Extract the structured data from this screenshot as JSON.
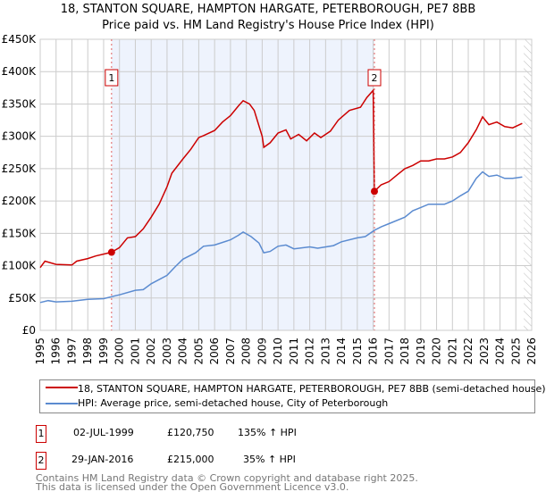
{
  "chart_data": {
    "type": "line",
    "title": "18, STANTON SQUARE, HAMPTON HARGATE, PETERBOROUGH, PE7 8BB",
    "subtitle": "Price paid vs. HM Land Registry's House Price Index (HPI)",
    "xlim": [
      1995,
      2026
    ],
    "ylim": [
      0,
      450000
    ],
    "x_ticks": [
      "1995",
      "1996",
      "1997",
      "1998",
      "1999",
      "2000",
      "2001",
      "2002",
      "2003",
      "2004",
      "2005",
      "2006",
      "2007",
      "2008",
      "2009",
      "2010",
      "2011",
      "2012",
      "2013",
      "2014",
      "2015",
      "2016",
      "2017",
      "2018",
      "2019",
      "2020",
      "2021",
      "2022",
      "2023",
      "2024",
      "2025",
      "2026"
    ],
    "y_ticks": [
      {
        "v": 0,
        "label": "£0"
      },
      {
        "v": 50000,
        "label": "£50K"
      },
      {
        "v": 100000,
        "label": "£100K"
      },
      {
        "v": 150000,
        "label": "£150K"
      },
      {
        "v": 200000,
        "label": "£200K"
      },
      {
        "v": 250000,
        "label": "£250K"
      },
      {
        "v": 300000,
        "label": "£300K"
      },
      {
        "v": 350000,
        "label": "£350K"
      },
      {
        "v": 400000,
        "label": "£400K"
      },
      {
        "v": 450000,
        "label": "£450K"
      }
    ],
    "grid": true,
    "shaded_range": [
      1999.5,
      2016.08
    ],
    "hatched_from": 2025.5,
    "series": [
      {
        "name": "18, STANTON SQUARE, HAMPTON HARGATE, PETERBOROUGH, PE7 8BB (semi-detached house)",
        "color": "#cc0000",
        "x": [
          1995,
          1995.3,
          1996,
          1997,
          1997.3,
          1998,
          1998.5,
          1999.5,
          2000,
          2000.5,
          2001,
          2001.5,
          2002,
          2002.5,
          2003,
          2003.3,
          2004,
          2004.5,
          2005,
          2005.3,
          2006,
          2006.5,
          2007,
          2007.5,
          2007.8,
          2008.2,
          2008.5,
          2009,
          2009.1,
          2009.5,
          2010,
          2010.5,
          2010.8,
          2011.3,
          2011.8,
          2012.3,
          2012.7,
          2013.3,
          2013.8,
          2014.5,
          2015.2,
          2015.6,
          2016.0,
          2016.08,
          2016.5,
          2017,
          2017.5,
          2018,
          2018.5,
          2019,
          2019.5,
          2020,
          2020.5,
          2021,
          2021.5,
          2022,
          2022.5,
          2022.9,
          2023.3,
          2023.8,
          2024.3,
          2024.8,
          2025.4
        ],
        "y": [
          97000,
          107000,
          102000,
          101000,
          107000,
          111000,
          115000,
          120750,
          128000,
          143000,
          145000,
          157000,
          175000,
          195000,
          222000,
          243000,
          265000,
          280000,
          298000,
          301000,
          309000,
          322000,
          332000,
          347000,
          355000,
          350000,
          340000,
          300000,
          283000,
          290000,
          305000,
          310000,
          296000,
          303000,
          293000,
          305000,
          298000,
          308000,
          325000,
          340000,
          345000,
          360000,
          371000,
          215000,
          225000,
          230000,
          240000,
          250000,
          255000,
          262000,
          262000,
          265000,
          265000,
          268000,
          275000,
          290000,
          310000,
          330000,
          318000,
          322000,
          315000,
          313000,
          320000
        ]
      },
      {
        "name": "HPI: Average price, semi-detached house, City of Peterborough",
        "color": "#5b8bd0",
        "x": [
          1995,
          1995.5,
          1996,
          1997,
          1998,
          1999,
          1999.5,
          2000,
          2001,
          2001.5,
          2002,
          2003,
          2003.5,
          2004,
          2004.8,
          2005.3,
          2006,
          2007,
          2007.5,
          2007.8,
          2008.3,
          2008.8,
          2009.1,
          2009.5,
          2010,
          2010.5,
          2011,
          2012,
          2012.5,
          2013.5,
          2014,
          2015,
          2015.5,
          2016.1,
          2016.5,
          2017,
          2018,
          2018.5,
          2019,
          2019.5,
          2020,
          2020.5,
          2021,
          2021.5,
          2022,
          2022.5,
          2022.9,
          2023.3,
          2023.8,
          2024.3,
          2024.8,
          2025.4
        ],
        "y": [
          43000,
          46000,
          44000,
          45000,
          48000,
          49000,
          52000,
          55000,
          62000,
          63000,
          72000,
          85000,
          98000,
          110000,
          120000,
          130000,
          132000,
          140000,
          147000,
          152000,
          145000,
          135000,
          120000,
          122000,
          130000,
          132000,
          126000,
          129000,
          127000,
          131000,
          137000,
          143000,
          145000,
          155000,
          160000,
          165000,
          175000,
          185000,
          190000,
          195000,
          195000,
          195000,
          200000,
          208000,
          215000,
          235000,
          245000,
          238000,
          240000,
          235000,
          235000,
          237000
        ]
      }
    ],
    "sales": [
      {
        "id": "1",
        "x": 1999.5,
        "price": 120750,
        "date": "02-JUL-1999",
        "price_label": "£120,750",
        "hpi": "135% ↑ HPI"
      },
      {
        "id": "2",
        "x": 2016.08,
        "price": 215000,
        "date": "29-JAN-2016",
        "price_label": "£215,000",
        "hpi": "35% ↑ HPI"
      }
    ]
  },
  "footer": {
    "line1": "Contains HM Land Registry data © Crown copyright and database right 2025.",
    "line2": "This data is licensed under the Open Government Licence v3.0."
  }
}
